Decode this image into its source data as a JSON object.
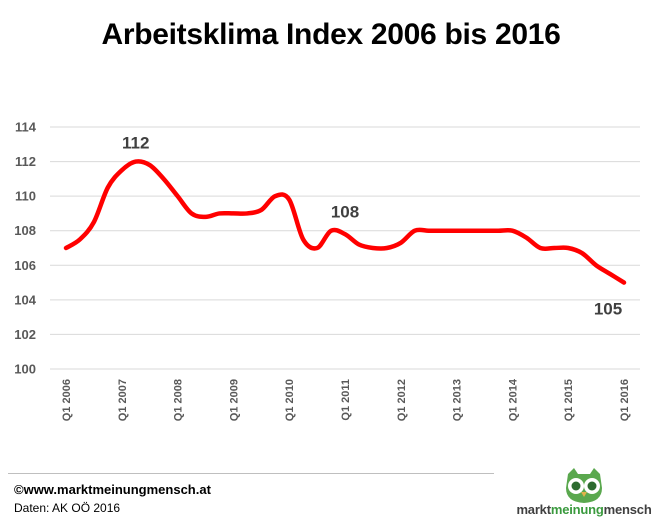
{
  "chart_data": {
    "type": "line",
    "title": "Arbeitsklima Index 2006 bis 2016",
    "xlabel": "",
    "ylabel": "",
    "categories": [
      "Q1 2006",
      "Q1 2007",
      "Q1 2008",
      "Q1 2009",
      "Q1 2010",
      "Q1 2011",
      "Q1 2012",
      "Q1 2013",
      "Q1 2014",
      "Q1 2015",
      "Q1 2016"
    ],
    "x": [
      2006,
      2006.25,
      2006.5,
      2006.75,
      2007,
      2007.25,
      2007.5,
      2007.75,
      2008,
      2008.25,
      2008.5,
      2008.75,
      2009,
      2009.25,
      2009.5,
      2009.75,
      2010,
      2010.25,
      2010.5,
      2010.75,
      2011,
      2011.25,
      2011.5,
      2011.75,
      2012,
      2012.25,
      2012.5,
      2012.75,
      2013,
      2013.25,
      2013.5,
      2013.75,
      2014,
      2014.25,
      2014.5,
      2014.75,
      2015,
      2015.25,
      2015.5,
      2015.75,
      2016
    ],
    "series": [
      {
        "values": [
          107,
          107.5,
          108.5,
          110.5,
          111.5,
          112,
          111.8,
          111,
          110,
          109,
          108.8,
          109,
          109,
          109,
          109.2,
          110,
          109.8,
          107.5,
          107,
          108,
          107.8,
          107.2,
          107,
          107,
          107.3,
          108,
          108,
          108,
          108,
          108,
          108,
          108,
          108,
          107.6,
          107,
          107,
          107,
          106.7,
          106,
          105.5,
          105
        ],
        "color": "#ff0000"
      }
    ],
    "ylim": [
      100,
      114
    ],
    "yticks": [
      "100",
      "102",
      "104",
      "106",
      "108",
      "110",
      "112",
      "114"
    ],
    "grid": true,
    "legend": "none",
    "annotations": [
      {
        "x": 2007.25,
        "y": 112,
        "text": "112"
      },
      {
        "x": 2011,
        "y": 108,
        "text": "108"
      },
      {
        "x": 2016,
        "y": 105,
        "text": "105"
      }
    ]
  },
  "footer": {
    "copyright": "©www.marktmeinungmensch.at",
    "source": "Daten: AK OÖ 2016"
  },
  "logo": {
    "text_start": "markt",
    "text_mid": "meinung",
    "text_end": "mensch",
    "icon": "owl-icon",
    "color": "#3a9a3e"
  }
}
